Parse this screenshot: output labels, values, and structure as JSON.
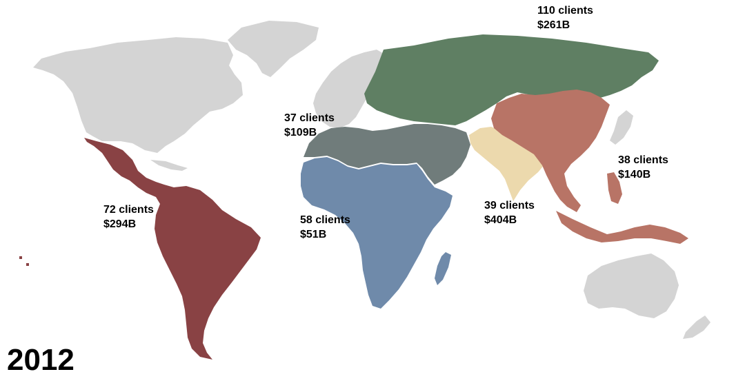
{
  "year": "2012",
  "colors": {
    "background": "#ffffff",
    "other_land": "#d4d4d4",
    "latin_america": "#894244",
    "russia_central_asia": "#5f7f63",
    "middle_east_north_africa": "#707c7b",
    "sub_saharan_africa": "#6f8aaa",
    "south_asia": "#ecd9ad",
    "east_asia_pacific": "#b87466",
    "text": "#000000"
  },
  "regions": [
    {
      "id": "latin-america",
      "clients": "72 clients",
      "amount": "$294B"
    },
    {
      "id": "russia-central-asia",
      "clients": "110 clients",
      "amount": "$261B"
    },
    {
      "id": "middle-east-north-africa",
      "clients": "37 clients",
      "amount": "$109B"
    },
    {
      "id": "sub-saharan-africa",
      "clients": "58 clients",
      "amount": "$51B"
    },
    {
      "id": "south-asia",
      "clients": "39 clients",
      "amount": "$404B"
    },
    {
      "id": "east-asia-pacific",
      "clients": "38 clients",
      "amount": "$140B"
    }
  ]
}
